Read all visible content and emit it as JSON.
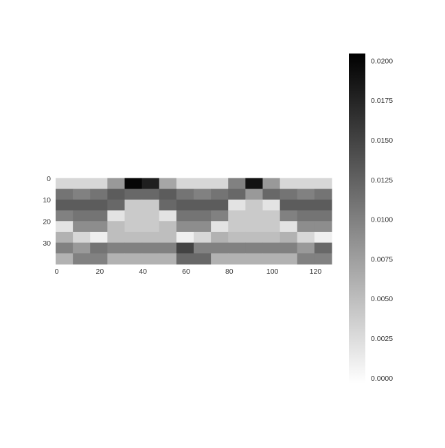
{
  "chart_data": {
    "type": "heatmap",
    "xlim": [
      -0.5,
      127.5
    ],
    "ylim": [
      39.5,
      -0.5
    ],
    "xticks": [
      0,
      20,
      40,
      60,
      80,
      100,
      120
    ],
    "yticks": [
      0,
      10,
      20,
      30
    ],
    "colors": [
      "#ffffff",
      "#000000"
    ],
    "clim": [
      -0.0003,
      0.0205
    ],
    "cticks": [
      {
        "value": 0,
        "label": "0.0000"
      },
      {
        "value": 0.0025,
        "label": "0.0025"
      },
      {
        "value": 0.005,
        "label": "0.0050"
      },
      {
        "value": 0.0075,
        "label": "0.0075"
      },
      {
        "value": 0.01,
        "label": "0.0100"
      },
      {
        "value": 0.0125,
        "label": "0.0125"
      },
      {
        "value": 0.015,
        "label": "0.0150"
      },
      {
        "value": 0.0175,
        "label": "0.0175"
      },
      {
        "value": 0.02,
        "label": "0.0200"
      }
    ],
    "z": [
      [
        0.003,
        0.003,
        0.003,
        0.008,
        0.02,
        0.018,
        0.007,
        0.003,
        0.003,
        0.003,
        0.01,
        0.019,
        0.008,
        0.003,
        0.003,
        0.003
      ],
      [
        0.011,
        0.01,
        0.011,
        0.013,
        0.012,
        0.012,
        0.013,
        0.011,
        0.01,
        0.011,
        0.012,
        0.008,
        0.012,
        0.011,
        0.01,
        0.011
      ],
      [
        0.013,
        0.013,
        0.013,
        0.012,
        0.004,
        0.004,
        0.012,
        0.013,
        0.013,
        0.013,
        0.002,
        0.004,
        0.002,
        0.013,
        0.013,
        0.013
      ],
      [
        0.01,
        0.011,
        0.011,
        0.002,
        0.004,
        0.004,
        0.002,
        0.011,
        0.011,
        0.01,
        0.004,
        0.004,
        0.004,
        0.01,
        0.011,
        0.011
      ],
      [
        0.002,
        0.009,
        0.009,
        0.005,
        0.004,
        0.004,
        0.005,
        0.009,
        0.009,
        0.002,
        0.004,
        0.004,
        0.004,
        0.002,
        0.009,
        0.009
      ],
      [
        0.006,
        0.003,
        0.001,
        0.005,
        0.005,
        0.005,
        0.005,
        0.001,
        0.003,
        0.006,
        0.005,
        0.005,
        0.005,
        0.006,
        0.003,
        0.001
      ],
      [
        0.01,
        0.008,
        0.011,
        0.01,
        0.01,
        0.01,
        0.01,
        0.015,
        0.01,
        0.01,
        0.01,
        0.01,
        0.01,
        0.01,
        0.008,
        0.012
      ],
      [
        0.006,
        0.01,
        0.01,
        0.006,
        0.006,
        0.006,
        0.006,
        0.012,
        0.012,
        0.006,
        0.006,
        0.006,
        0.006,
        0.006,
        0.01,
        0.01
      ]
    ]
  }
}
